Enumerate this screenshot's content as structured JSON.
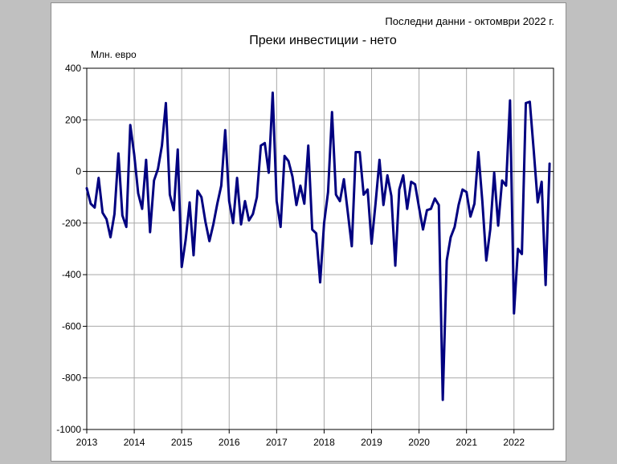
{
  "header": {
    "note": "Последни данни - октомври 2022 г."
  },
  "chart_data": {
    "type": "line",
    "title": "Преки инвестиции - нето",
    "ylabel": "Млн. евро",
    "xlabel": "",
    "ylim": [
      -1000,
      400
    ],
    "yticks": [
      400,
      200,
      0,
      -200,
      -400,
      -600,
      -800,
      -1000
    ],
    "xlim": [
      "2013-01",
      "2022-11"
    ],
    "xticks": [
      "2013",
      "2014",
      "2015",
      "2016",
      "2017",
      "2018",
      "2019",
      "2020",
      "2021",
      "2022"
    ],
    "grid": true,
    "line_color": "#000080",
    "series": [
      {
        "name": "",
        "x_start": "2013-01",
        "frequency": "monthly",
        "values": [
          -65,
          -125,
          -140,
          -25,
          -160,
          -185,
          -255,
          -165,
          70,
          -170,
          -215,
          180,
          65,
          -85,
          -145,
          45,
          -235,
          -35,
          10,
          100,
          265,
          -90,
          -150,
          85,
          -370,
          -265,
          -120,
          -325,
          -75,
          -100,
          -195,
          -270,
          -205,
          -125,
          -55,
          160,
          -115,
          -200,
          -25,
          -205,
          -115,
          -190,
          -165,
          -100,
          100,
          110,
          -5,
          305,
          -115,
          -215,
          60,
          40,
          -20,
          -130,
          -55,
          -125,
          100,
          -225,
          -240,
          -430,
          -200,
          -80,
          230,
          -90,
          -115,
          -30,
          -160,
          -290,
          75,
          75,
          -90,
          -70,
          -280,
          -125,
          45,
          -130,
          -15,
          -95,
          -365,
          -70,
          -15,
          -145,
          -40,
          -50,
          -140,
          -225,
          -150,
          -145,
          -105,
          -130,
          -885,
          -345,
          -255,
          -215,
          -130,
          -70,
          -80,
          -175,
          -125,
          75,
          -115,
          -345,
          -225,
          -5,
          -210,
          -35,
          -55,
          275,
          -550,
          -300,
          -320,
          265,
          270,
          80,
          -120,
          -40,
          -440,
          30
        ]
      }
    ]
  }
}
